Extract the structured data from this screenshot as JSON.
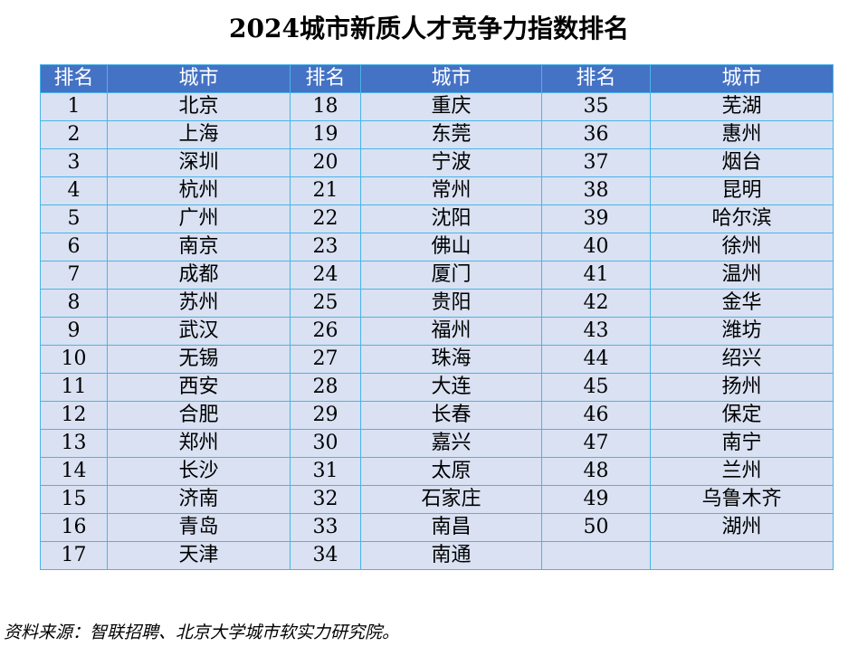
{
  "title": "2024城市新质人才竞争力指数排名",
  "headers": [
    "排名",
    "城市",
    "排名",
    "城市",
    "排名",
    "城市"
  ],
  "rankings": [
    {
      "rank": "1",
      "city": "北京"
    },
    {
      "rank": "2",
      "city": "上海"
    },
    {
      "rank": "3",
      "city": "深圳"
    },
    {
      "rank": "4",
      "city": "杭州"
    },
    {
      "rank": "5",
      "city": "广州"
    },
    {
      "rank": "6",
      "city": "南京"
    },
    {
      "rank": "7",
      "city": "成都"
    },
    {
      "rank": "8",
      "city": "苏州"
    },
    {
      "rank": "9",
      "city": "武汉"
    },
    {
      "rank": "10",
      "city": "无锡"
    },
    {
      "rank": "11",
      "city": "西安"
    },
    {
      "rank": "12",
      "city": "合肥"
    },
    {
      "rank": "13",
      "city": "郑州"
    },
    {
      "rank": "14",
      "city": "长沙"
    },
    {
      "rank": "15",
      "city": "济南"
    },
    {
      "rank": "16",
      "city": "青岛"
    },
    {
      "rank": "17",
      "city": "天津"
    },
    {
      "rank": "18",
      "city": "重庆"
    },
    {
      "rank": "19",
      "city": "东莞"
    },
    {
      "rank": "20",
      "city": "宁波"
    },
    {
      "rank": "21",
      "city": "常州"
    },
    {
      "rank": "22",
      "city": "沈阳"
    },
    {
      "rank": "23",
      "city": "佛山"
    },
    {
      "rank": "24",
      "city": "厦门"
    },
    {
      "rank": "25",
      "city": "贵阳"
    },
    {
      "rank": "26",
      "city": "福州"
    },
    {
      "rank": "27",
      "city": "珠海"
    },
    {
      "rank": "28",
      "city": "大连"
    },
    {
      "rank": "29",
      "city": "长春"
    },
    {
      "rank": "30",
      "city": "嘉兴"
    },
    {
      "rank": "31",
      "city": "太原"
    },
    {
      "rank": "32",
      "city": "石家庄"
    },
    {
      "rank": "33",
      "city": "南昌"
    },
    {
      "rank": "34",
      "city": "南通"
    },
    {
      "rank": "35",
      "city": "芜湖"
    },
    {
      "rank": "36",
      "city": "惠州"
    },
    {
      "rank": "37",
      "city": "烟台"
    },
    {
      "rank": "38",
      "city": "昆明"
    },
    {
      "rank": "39",
      "city": "哈尔滨"
    },
    {
      "rank": "40",
      "city": "徐州"
    },
    {
      "rank": "41",
      "city": "温州"
    },
    {
      "rank": "42",
      "city": "金华"
    },
    {
      "rank": "43",
      "city": "潍坊"
    },
    {
      "rank": "44",
      "city": "绍兴"
    },
    {
      "rank": "45",
      "city": "扬州"
    },
    {
      "rank": "46",
      "city": "保定"
    },
    {
      "rank": "47",
      "city": "南宁"
    },
    {
      "rank": "48",
      "city": "兰州"
    },
    {
      "rank": "49",
      "city": "乌鲁木齐"
    },
    {
      "rank": "50",
      "city": "湖州"
    }
  ],
  "source": "资料来源：智联招聘、北京大学城市软实力研究院。",
  "watermarks": [
    "智联招聘",
    "北京大学城市软实力研究院"
  ],
  "colors": {
    "header_bg": "#4472c4",
    "row_bg": "#d9e1f2",
    "border": "#4ab4e8"
  }
}
